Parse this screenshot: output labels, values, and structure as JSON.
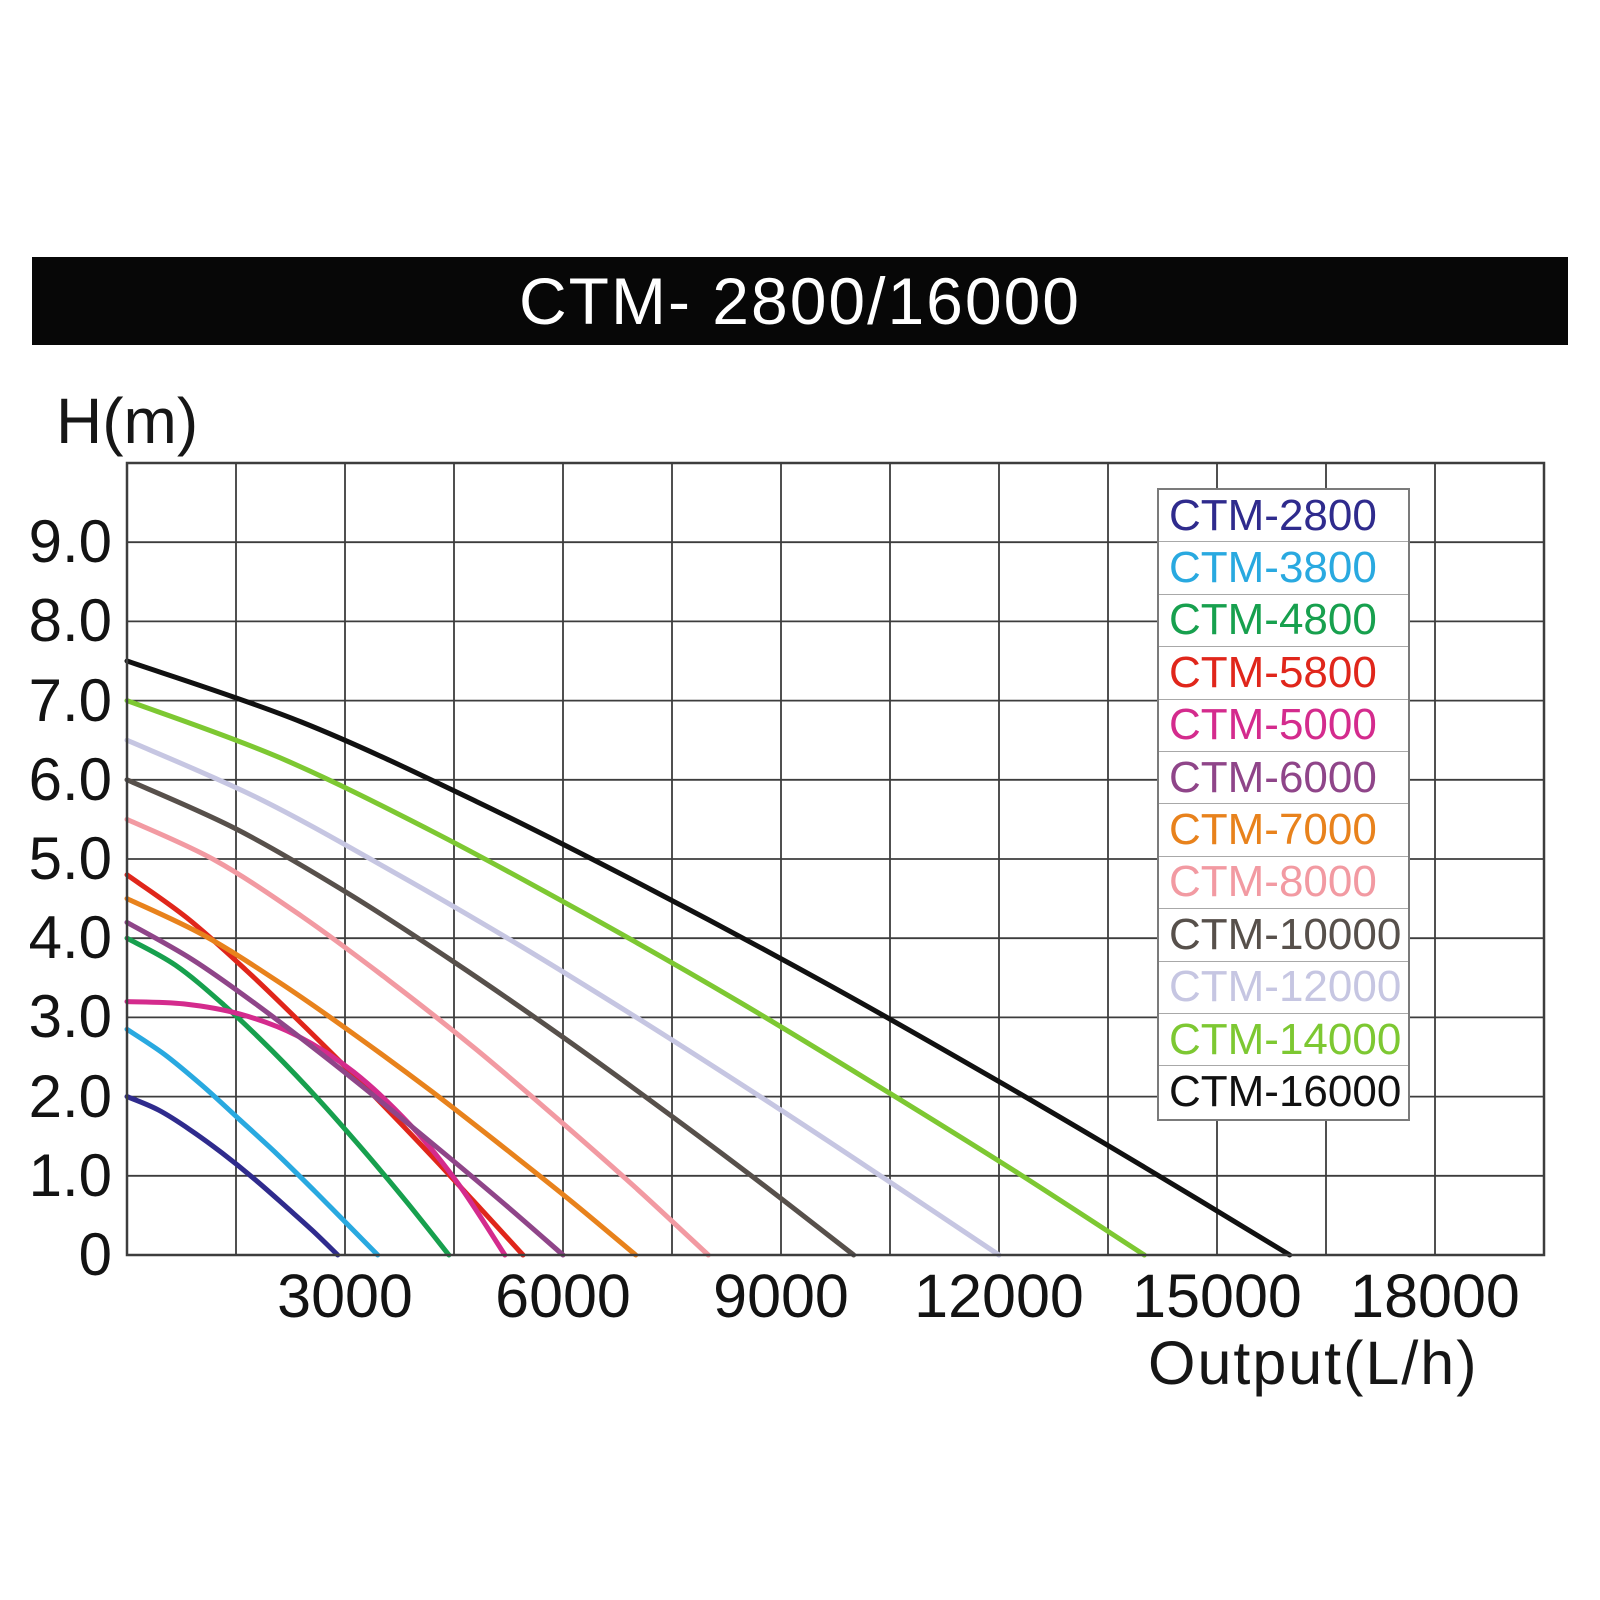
{
  "title": "CTM- 2800/16000",
  "chart_data": {
    "type": "line",
    "title": "CTM- 2800/16000",
    "xlabel": "Output(L/h)",
    "ylabel": "H(m)",
    "xlim": [
      0,
      19500
    ],
    "ylim": [
      0,
      10
    ],
    "x_grid_step": 1500,
    "y_grid_step": 1,
    "grid": true,
    "legend_position": "upper right",
    "x_tick_values": [
      3000,
      6000,
      9000,
      12000,
      15000,
      18000
    ],
    "x_tick_labels": [
      "3000",
      "6000",
      "9000",
      "12000",
      "15000",
      "18000"
    ],
    "y_tick_values": [
      9,
      8,
      7,
      6,
      5,
      4,
      3,
      2,
      1,
      0
    ],
    "y_tick_labels": [
      "9.0",
      "8.0",
      "7.0",
      "6.0",
      "5.0",
      "4.0",
      "3.0",
      "2.0",
      "1.0",
      "0"
    ],
    "series": [
      {
        "name": "CTM-2800",
        "color": "#2f2b8d",
        "max_head_m": 2.0,
        "max_flow_lh": 2900,
        "points": [
          [
            0,
            2.0
          ],
          [
            435,
            1.83
          ],
          [
            870,
            1.58
          ],
          [
            1305,
            1.29
          ],
          [
            1740,
            0.97
          ],
          [
            2175,
            0.62
          ],
          [
            2540,
            0.32
          ],
          [
            2900,
            0
          ]
        ]
      },
      {
        "name": "CTM-3800",
        "color": "#29a9e0",
        "max_head_m": 2.85,
        "max_flow_lh": 3450,
        "points": [
          [
            0,
            2.85
          ],
          [
            520,
            2.53
          ],
          [
            1035,
            2.14
          ],
          [
            1550,
            1.71
          ],
          [
            2070,
            1.27
          ],
          [
            2590,
            0.8
          ],
          [
            3020,
            0.4
          ],
          [
            3450,
            0
          ]
        ]
      },
      {
        "name": "CTM-4800",
        "color": "#17a04e",
        "max_head_m": 4.0,
        "max_flow_lh": 4430,
        "points": [
          [
            0,
            4.0
          ],
          [
            665,
            3.66
          ],
          [
            1330,
            3.16
          ],
          [
            1995,
            2.58
          ],
          [
            2660,
            1.94
          ],
          [
            3320,
            1.25
          ],
          [
            3875,
            0.64
          ],
          [
            4430,
            0
          ]
        ]
      },
      {
        "name": "CTM-5800",
        "color": "#e0261b",
        "max_head_m": 4.8,
        "max_flow_lh": 5450,
        "points": [
          [
            0,
            4.8
          ],
          [
            820,
            4.26
          ],
          [
            1635,
            3.6
          ],
          [
            2450,
            2.88
          ],
          [
            3270,
            2.13
          ],
          [
            4090,
            1.35
          ],
          [
            4770,
            0.68
          ],
          [
            5450,
            0
          ]
        ]
      },
      {
        "name": "CTM-5000",
        "color": "#d42b8d",
        "max_head_m": 3.2,
        "max_flow_lh": 5200,
        "points": [
          [
            0,
            3.2
          ],
          [
            780,
            3.17
          ],
          [
            1560,
            3.04
          ],
          [
            2340,
            2.77
          ],
          [
            3120,
            2.31
          ],
          [
            3900,
            1.64
          ],
          [
            4550,
            0.91
          ],
          [
            5200,
            0
          ]
        ]
      },
      {
        "name": "CTM-6000",
        "color": "#8f4589",
        "max_head_m": 4.2,
        "max_flow_lh": 6000,
        "points": [
          [
            0,
            4.2
          ],
          [
            900,
            3.73
          ],
          [
            1800,
            3.15
          ],
          [
            2700,
            2.52
          ],
          [
            3600,
            1.86
          ],
          [
            4500,
            1.18
          ],
          [
            5250,
            0.6
          ],
          [
            6000,
            0
          ]
        ]
      },
      {
        "name": "CTM-7000",
        "color": "#e8821c",
        "max_head_m": 4.5,
        "max_flow_lh": 7000,
        "points": [
          [
            0,
            4.5
          ],
          [
            1050,
            4.04
          ],
          [
            2100,
            3.44
          ],
          [
            3150,
            2.77
          ],
          [
            4200,
            2.06
          ],
          [
            5250,
            1.31
          ],
          [
            6125,
            0.67
          ],
          [
            7000,
            0
          ]
        ]
      },
      {
        "name": "CTM-8000",
        "color": "#f29aa2",
        "max_head_m": 5.5,
        "max_flow_lh": 8000,
        "points": [
          [
            0,
            5.5
          ],
          [
            1200,
            4.99
          ],
          [
            2400,
            4.28
          ],
          [
            3600,
            3.47
          ],
          [
            4800,
            2.6
          ],
          [
            6000,
            1.66
          ],
          [
            7000,
            0.85
          ],
          [
            8000,
            0
          ]
        ]
      },
      {
        "name": "CTM-10000",
        "color": "#57504b",
        "max_head_m": 6.0,
        "max_flow_lh": 10000,
        "points": [
          [
            0,
            6.0
          ],
          [
            1500,
            5.38
          ],
          [
            3000,
            4.59
          ],
          [
            4500,
            3.7
          ],
          [
            6000,
            2.75
          ],
          [
            7500,
            1.75
          ],
          [
            8750,
            0.89
          ],
          [
            10000,
            0
          ]
        ]
      },
      {
        "name": "CTM-12000",
        "color": "#c6c6e2",
        "max_head_m": 6.5,
        "max_flow_lh": 12000,
        "points": [
          [
            0,
            6.5
          ],
          [
            1800,
            5.77
          ],
          [
            3600,
            4.87
          ],
          [
            5400,
            3.91
          ],
          [
            7200,
            2.89
          ],
          [
            9000,
            1.83
          ],
          [
            10500,
            0.92
          ],
          [
            12000,
            0
          ]
        ]
      },
      {
        "name": "CTM-14000",
        "color": "#7dc832",
        "max_head_m": 7.0,
        "max_flow_lh": 14000,
        "points": [
          [
            0,
            7.0
          ],
          [
            2100,
            6.28
          ],
          [
            4200,
            5.35
          ],
          [
            6300,
            4.31
          ],
          [
            8400,
            3.21
          ],
          [
            10500,
            2.04
          ],
          [
            12250,
            1.04
          ],
          [
            14000,
            0
          ]
        ]
      },
      {
        "name": "CTM-16000",
        "color": "#111111",
        "max_head_m": 7.5,
        "max_flow_lh": 16000,
        "points": [
          [
            0,
            7.5
          ],
          [
            2400,
            6.73
          ],
          [
            4800,
            5.73
          ],
          [
            7200,
            4.62
          ],
          [
            9600,
            3.44
          ],
          [
            12000,
            2.19
          ],
          [
            14000,
            1.11
          ],
          [
            16000,
            0
          ]
        ]
      }
    ]
  }
}
